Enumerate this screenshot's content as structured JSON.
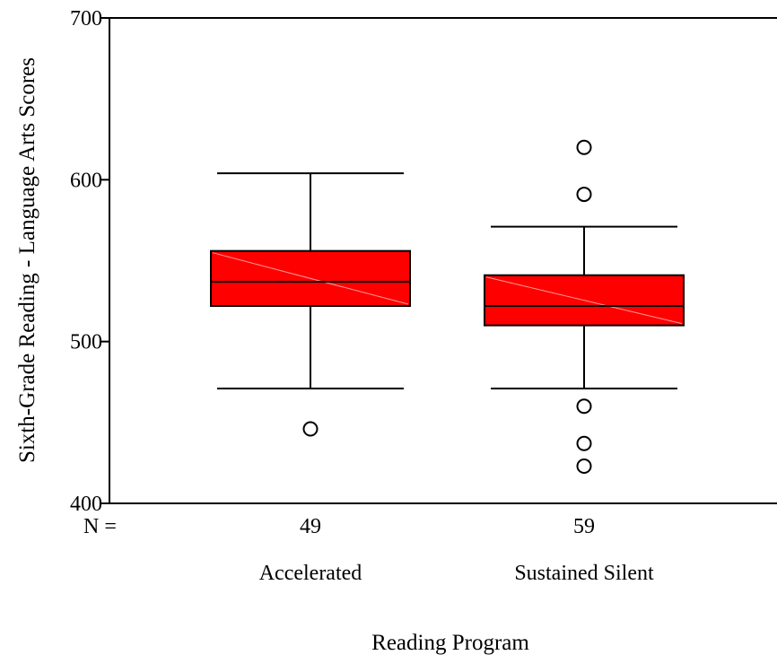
{
  "chart_data": {
    "type": "boxplot",
    "title": "",
    "xlabel": "Reading Program",
    "ylabel": "Sixth-Grade Reading - Language Arts Scores",
    "ylim": [
      400,
      700
    ],
    "yticks": [
      400,
      500,
      600,
      700
    ],
    "n_label": "N =",
    "grid": false,
    "legend": "none",
    "box_color": "#ff0000",
    "groups": [
      {
        "category": "Accelerated",
        "n": "49",
        "whisker_low": 471,
        "q1": 522,
        "median": 537,
        "q3": 556,
        "whisker_high": 604,
        "outliers": [
          446
        ]
      },
      {
        "category": "Sustained Silent",
        "n": "59",
        "whisker_low": 471,
        "q1": 510,
        "median": 522,
        "q3": 541,
        "whisker_high": 571,
        "outliers": [
          620,
          591,
          460,
          437,
          423
        ]
      }
    ]
  }
}
